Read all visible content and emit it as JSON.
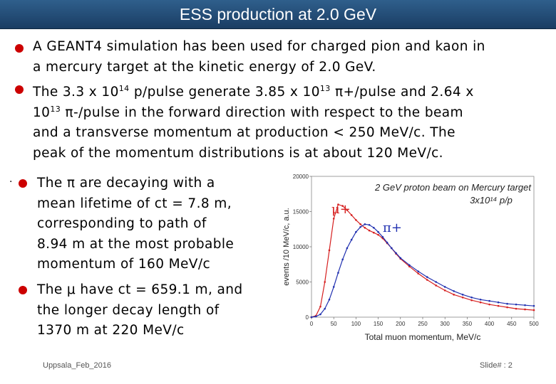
{
  "slide": {
    "title": "ESS production at 2.0 GeV",
    "footer_left": "Uppsala_Feb_2016",
    "footer_right": "Slide# : 2"
  },
  "bullets": [
    {
      "lines": [
        "A GEANT4 simulation has been used for charged pion and kaon in",
        "a mercury target at the kinetic energy of 2.0 GeV."
      ]
    },
    {
      "lines_b2": {
        "l1a": " The 3.3 x 10",
        "l1s1": "14",
        "l1b": " p/pulse generate 3.85 x 10",
        "l1s2": "13",
        "l1c": " π+/pulse and 2.64 x",
        "l2a": "10",
        "l2s": "13",
        "l2b": " π-/pulse in the forward direction with respect to the beam",
        "l3": "and a transverse momentum at production < 250 MeV/c. The",
        "l4": "peak of the momentum distributions is at about 120 MeV/c."
      }
    },
    {
      "lines": [
        "The π are decaying with a",
        "mean lifetime of ct = 7.8 m,",
        "corresponding to path of",
        "8.94 m at the most probable",
        "momentum of 160 MeV/c"
      ]
    },
    {
      "lines": [
        "The μ have ct = 659.1 m, and",
        "the longer decay length of",
        "1370 m at 220 MeV/c"
      ]
    }
  ],
  "stray_dot": "·",
  "chart_data": {
    "type": "line",
    "title": "2 GeV proton beam on Mercury target",
    "subtitle": "3x10¹⁴ p/p",
    "xlabel": "Total muon momentum, MeV/c",
    "ylabel": "events /10 MeV/c, a.u.",
    "xlim": [
      0,
      500
    ],
    "ylim": [
      0,
      20000
    ],
    "xticks": [
      "0",
      "50",
      "100",
      "150",
      "200",
      "250",
      "300",
      "350",
      "400",
      "450",
      "500"
    ],
    "yticks": [
      "0",
      "5000",
      "10000",
      "15000",
      "20000"
    ],
    "series": [
      {
        "name": "μ+",
        "color": "#d62020",
        "x": [
          0,
          10,
          20,
          30,
          40,
          50,
          60,
          70,
          80,
          90,
          100,
          110,
          120,
          130,
          140,
          150,
          160,
          170,
          180,
          190,
          200,
          220,
          240,
          260,
          280,
          300,
          320,
          340,
          360,
          380,
          400,
          420,
          440,
          460,
          480,
          500
        ],
        "y": [
          0,
          200,
          1500,
          5000,
          9500,
          14000,
          16000,
          15800,
          15200,
          14500,
          13800,
          13200,
          12700,
          12300,
          12000,
          11700,
          11200,
          10500,
          9800,
          9000,
          8300,
          7200,
          6200,
          5300,
          4500,
          3800,
          3200,
          2800,
          2400,
          2100,
          1800,
          1600,
          1400,
          1200,
          1100,
          1000
        ]
      },
      {
        "name": "π+",
        "color": "#2030b0",
        "x": [
          0,
          10,
          20,
          30,
          40,
          50,
          60,
          70,
          80,
          90,
          100,
          110,
          120,
          130,
          140,
          150,
          160,
          170,
          180,
          190,
          200,
          220,
          240,
          260,
          280,
          300,
          320,
          340,
          360,
          380,
          400,
          420,
          440,
          460,
          480,
          500
        ],
        "y": [
          0,
          100,
          400,
          1200,
          2500,
          4300,
          6300,
          8200,
          9800,
          11000,
          12100,
          12800,
          13200,
          13100,
          12700,
          12100,
          11400,
          10600,
          9800,
          9100,
          8400,
          7400,
          6500,
          5700,
          5000,
          4300,
          3700,
          3200,
          2800,
          2500,
          2300,
          2100,
          1900,
          1800,
          1700,
          1600
        ]
      }
    ],
    "annotations": [
      "μ+",
      "π+"
    ]
  }
}
